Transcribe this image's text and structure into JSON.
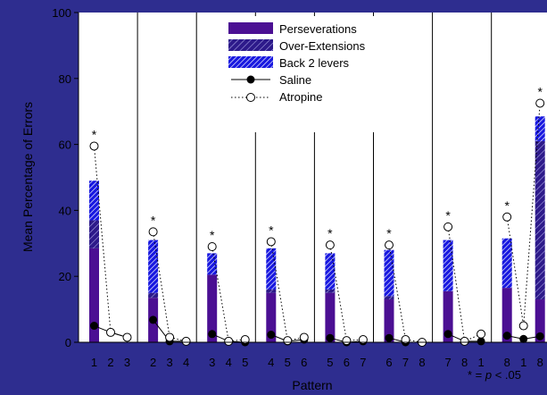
{
  "chart_data": {
    "type": "bar",
    "title": "",
    "xlabel": "Pattern",
    "ylabel": "Mean Percentage of Errors",
    "ylim": [
      0,
      100
    ],
    "yticks": [
      0,
      20,
      40,
      60,
      80,
      100
    ],
    "grid": false,
    "legend_position": "top-center",
    "note_prefix": "* = ",
    "note_p": "p",
    "note_suffix": " < .05",
    "categories": [
      "1",
      "2",
      "3",
      "2",
      "3",
      "4",
      "3",
      "4",
      "5",
      "4",
      "5",
      "6",
      "5",
      "6",
      "7",
      "6",
      "7",
      "8",
      "7",
      "8",
      "1",
      "8",
      "1",
      "8"
    ],
    "groups": [
      {
        "pattern": "1",
        "bar": {
          "perseverations": 28.5,
          "over_extensions": 8.5,
          "back2": 12
        },
        "saline": [
          5,
          3,
          1.5
        ],
        "atropine": [
          59.5,
          3,
          1.5
        ],
        "sig": [
          0
        ]
      },
      {
        "pattern": "2",
        "bar": {
          "perseverations": 13.5,
          "over_extensions": 1.5,
          "back2": 16
        },
        "saline": [
          6.8,
          0.3,
          0.3
        ],
        "atropine": [
          33.5,
          1.5,
          0.3
        ]
      },
      {
        "pattern": "3",
        "bar": {
          "perseverations": 20.5,
          "over_extensions": 0,
          "back2": 6.5
        },
        "saline": [
          2.5,
          0.3,
          0
        ],
        "atropine": [
          29,
          0.3,
          0.8
        ]
      },
      {
        "pattern": "4",
        "bar": {
          "perseverations": 15,
          "over_extensions": 1,
          "back2": 12.5
        },
        "saline": [
          2.3,
          0.3,
          0.8
        ],
        "atropine": [
          30.5,
          0.5,
          1.5
        ]
      },
      {
        "pattern": "5",
        "bar": {
          "perseverations": 15,
          "over_extensions": 1,
          "back2": 11
        },
        "saline": [
          1.3,
          0,
          0.3
        ],
        "atropine": [
          29.5,
          0.5,
          0.8
        ]
      },
      {
        "pattern": "6",
        "bar": {
          "perseverations": 13,
          "over_extensions": 1,
          "back2": 14
        },
        "saline": [
          1.3,
          0,
          0
        ],
        "atropine": [
          29.5,
          0.8,
          0
        ]
      },
      {
        "pattern": "7",
        "bar": {
          "perseverations": 15.5,
          "over_extensions": 0,
          "back2": 15.5
        },
        "saline": [
          2.5,
          0.3,
          0.3
        ],
        "atropine": [
          35,
          0.3,
          2.5
        ]
      },
      {
        "pattern": "8",
        "bar": {
          "perseverations": 16.5,
          "over_extensions": 0,
          "back2": 15
        },
        "saline": [
          2,
          1,
          1.8
        ],
        "atropine": [
          38,
          5,
          72.5
        ],
        "bar_right": {
          "perseverations": 13,
          "over_extensions": 48,
          "back2": 7.5
        }
      }
    ],
    "series": [
      {
        "name": "Perseverations",
        "kind": "bar-solid",
        "color": "#4b0f93"
      },
      {
        "name": "Over-Extensions",
        "kind": "bar-hatch",
        "color": "#2d1a8a"
      },
      {
        "name": "Back 2 levers",
        "kind": "bar-hatch",
        "color": "#1a1adf"
      },
      {
        "name": "Saline",
        "kind": "line-filled"
      },
      {
        "name": "Atropine",
        "kind": "line-open-dotted"
      }
    ],
    "significance_marker": "*"
  },
  "colors": {
    "background": "#2e2d8f",
    "plot_bg": "#ffffff",
    "perseverations": "#4b0f93"
  }
}
